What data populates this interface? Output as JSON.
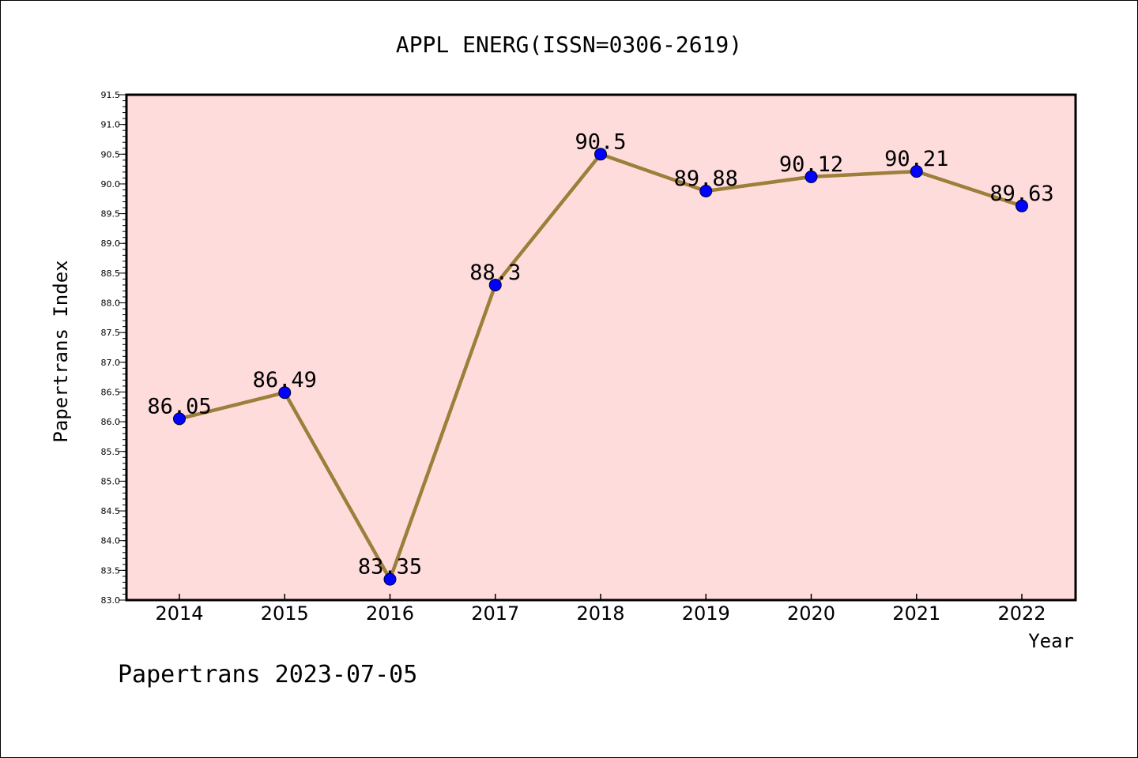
{
  "chart_data": {
    "type": "line",
    "title": "APPL ENERG(ISSN=0306-2619)",
    "xlabel": "Year",
    "ylabel": "Papertrans Index",
    "categories": [
      "2014",
      "2015",
      "2016",
      "2017",
      "2018",
      "2019",
      "2020",
      "2021",
      "2022"
    ],
    "series": [
      {
        "values": [
          86.05,
          86.49,
          83.35,
          88.3,
          90.5,
          89.88,
          90.12,
          90.21,
          89.63
        ]
      }
    ],
    "data_labels": [
      "86.05",
      "86.49",
      "83.35",
      "88.3",
      "90.5",
      "89.88",
      "90.12",
      "90.21",
      "89.63"
    ],
    "ylim": [
      83.0,
      91.5
    ],
    "y_ticks": [
      "83.0",
      "83.5",
      "84.0",
      "84.5",
      "85.0",
      "85.5",
      "86.0",
      "86.5",
      "87.0",
      "87.5",
      "88.0",
      "88.5",
      "89.0",
      "89.5",
      "90.0",
      "90.5",
      "91.0",
      "91.5"
    ],
    "grid": false,
    "legend": "none",
    "line_color": "#9b7f3a",
    "marker_color": "#0000ff",
    "plot_background": "#ffdcdc"
  },
  "footer": {
    "text": "Papertrans 2023-07-05"
  }
}
